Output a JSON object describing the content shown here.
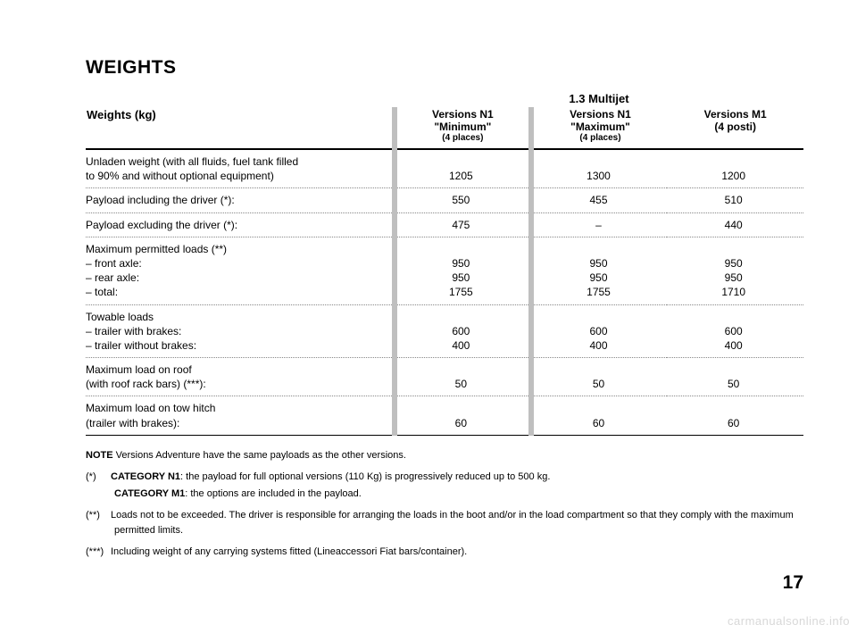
{
  "title": "WEIGHTS",
  "subtitle": "Weights (kg)",
  "engine_header": "1.3 Multijet",
  "columns": [
    {
      "line1": "Versions N1",
      "line2": "\"Minimum\"",
      "line3": "(4 places)"
    },
    {
      "line1": "Versions N1",
      "line2": "\"Maximum\"",
      "line3": "(4 places)"
    },
    {
      "line1": "Versions M1",
      "line2": "(4 posti)",
      "line3": ""
    }
  ],
  "rows": [
    {
      "label": "Unladen weight (with all fluids, fuel tank filled\nto 90% and without optional equipment)",
      "v": [
        "1205",
        "1300",
        "1200"
      ]
    },
    {
      "label": "Payload including the driver (*):",
      "v": [
        "550",
        "455",
        "510"
      ]
    },
    {
      "label": "Payload excluding the driver (*):",
      "v": [
        "475",
        "–",
        "440"
      ]
    },
    {
      "label": "Maximum permitted loads (**)\n– front axle:\n– rear axle:\n– total:",
      "v": [
        "\n950\n950\n1755",
        "\n950\n950\n1755",
        "\n950\n950\n1710"
      ]
    },
    {
      "label": "Towable loads\n– trailer with brakes:\n– trailer without brakes:",
      "v": [
        "\n600\n400",
        "\n600\n400",
        "\n600\n400"
      ]
    },
    {
      "label": "Maximum load on roof\n(with roof rack bars) (***):",
      "v": [
        "\n50",
        "\n50",
        "\n50"
      ]
    },
    {
      "label": "Maximum load on tow hitch\n(trailer with brakes):",
      "v": [
        "\n60",
        "\n60",
        "\n60"
      ]
    }
  ],
  "notes": {
    "note_lead": "NOTE",
    "note_text": " Versions Adventure have the same payloads as the other versions.",
    "star1_sym": "(*)",
    "star1a_bold": "CATEGORY N1",
    "star1a_rest": ": the payload for full optional versions (110 Kg) is progressively reduced up to 500 kg.",
    "star1b_bold": "CATEGORY M1",
    "star1b_rest": ": the options are included in the payload.",
    "star2_sym": "(**)",
    "star2_text": "Loads not to be exceeded. The driver is responsible for arranging the loads in the boot and/or in the load compartment so that they comply with the maximum permitted limits.",
    "star3_sym": "(***)",
    "star3_text": "Including weight of any carrying systems fitted (Lineaccessori Fiat bars/container)."
  },
  "page_number": "17",
  "watermark": "carmanualsonline.info"
}
